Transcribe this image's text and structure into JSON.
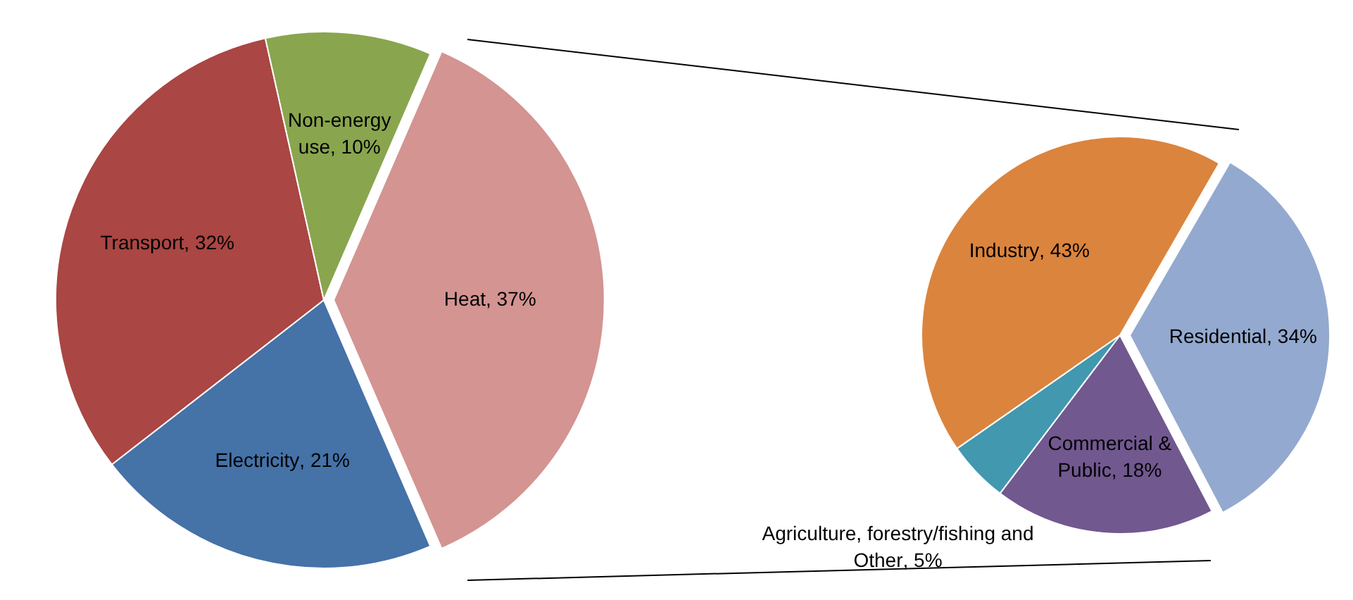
{
  "chart_data": [
    {
      "type": "pie",
      "categories": [
        "Heat",
        "Electricity",
        "Transport",
        "Non-energy use"
      ],
      "values": [
        37,
        21,
        32,
        10
      ],
      "colors": [
        "#d39492",
        "#4572a7",
        "#aa4643",
        "#89a54e"
      ],
      "value_labels": [
        ", 37%",
        ", 21%",
        ", 32%",
        ", 10%"
      ],
      "legend": false
    },
    {
      "type": "pie",
      "categories": [
        "Residential",
        "Commercial & Public",
        "Agriculture, forestry/fishing and Other",
        "Industry"
      ],
      "values": [
        34,
        18,
        5,
        43
      ],
      "colors": [
        "#93a9cf",
        "#71588f",
        "#4198af",
        "#db843d"
      ],
      "value_labels": [
        ", 34%",
        ", 18%",
        ", 5%",
        ", 43%"
      ],
      "legend": false
    }
  ]
}
